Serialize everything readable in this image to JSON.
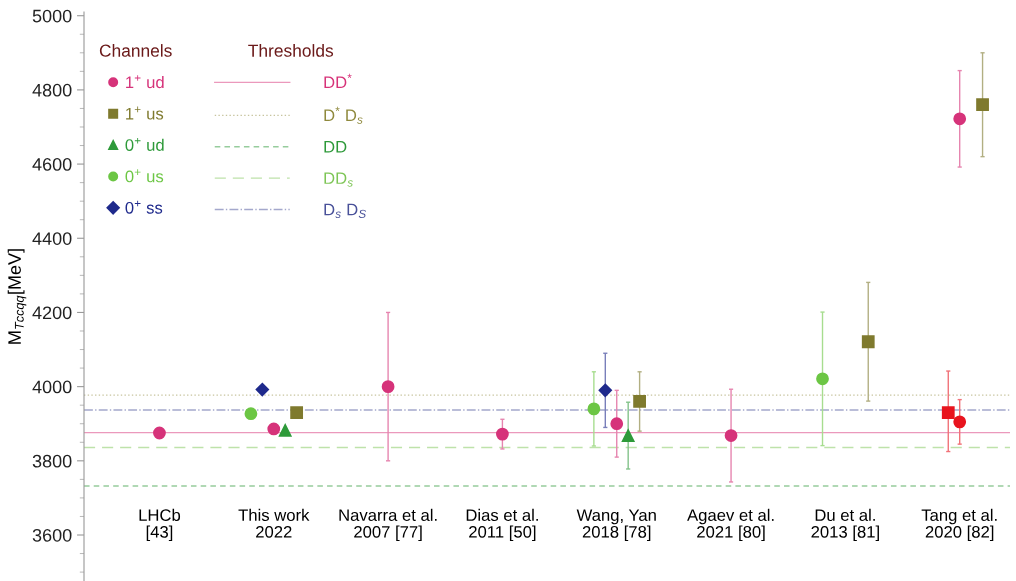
{
  "chart_data": {
    "type": "scatter",
    "ylabel": "M$_{Tccqq}$[MeV]",
    "categories": [
      "LHCb\n[43]",
      "This work\n2022",
      "Navarra et al.\n2007 [77]",
      "Dias et al.\n2011 [50]",
      "Wang, Yan\n2018 [78]",
      "Agaev et al.\n2021 [80]",
      "Du et al.\n2013 [81]",
      "Tang et al.\n2020 [82]"
    ],
    "ylim": [
      3476,
      5010
    ],
    "yticks": [
      3600,
      3800,
      4000,
      4200,
      4400,
      4600,
      4800,
      5000
    ],
    "legend": "top left",
    "legend_title": "Channels",
    "annotations": [
      "Thresholds"
    ],
    "series": [
      {
        "name": "1$^{+}$ ud",
        "color": "#d6337a",
        "marker": "circle",
        "values": [
          3875,
          3886,
          4000,
          3872,
          3900,
          3868,
          null,
          4722
        ],
        "errors": [
          null,
          null,
          200,
          40,
          90,
          125,
          null,
          130
        ]
      },
      {
        "name": "1$^{+}$ us",
        "color": "#7f7a2e",
        "marker": "square",
        "values": [
          null,
          3930,
          null,
          null,
          3960,
          null,
          4121,
          4760
        ],
        "errors": [
          null,
          null,
          null,
          null,
          80,
          null,
          160,
          140
        ]
      },
      {
        "name": "0$^{+}$ ud",
        "color": "#2e9a3a",
        "marker": "triangle",
        "values": [
          null,
          3882,
          null,
          null,
          3868,
          null,
          null,
          null
        ],
        "errors": [
          null,
          null,
          null,
          null,
          90,
          null,
          null,
          null
        ]
      },
      {
        "name": "0$^{+}$ us",
        "color": "#6cc644",
        "marker": "circle",
        "values": [
          null,
          3927,
          null,
          null,
          3940,
          null,
          4021,
          null
        ],
        "errors": [
          null,
          null,
          null,
          null,
          100,
          null,
          180,
          null
        ]
      },
      {
        "name": "0$^{+}$ ss",
        "color": "#1f2a8c",
        "marker": "diamond",
        "values": [
          null,
          3992,
          null,
          null,
          3990,
          null,
          null,
          null
        ],
        "errors": [
          null,
          null,
          null,
          null,
          100,
          null,
          null,
          null
        ]
      },
      {
        "color": "#e8141e",
        "marker": "square",
        "values": [
          null,
          null,
          null,
          null,
          null,
          null,
          null,
          3930
        ],
        "errors": [
          null,
          null,
          null,
          null,
          null,
          null,
          null,
          [
            3825,
            4042
          ]
        ]
      },
      {
        "color": "#e8141e",
        "marker": "circle",
        "values": [
          null,
          null,
          null,
          null,
          null,
          null,
          null,
          3905
        ],
        "errors": [
          null,
          null,
          null,
          null,
          null,
          null,
          null,
          60
        ]
      }
    ],
    "ref_lines": [
      {
        "axis": "y",
        "value": 3876,
        "label": "DD$^{*}$",
        "color": "#eb99bc",
        "line_style": "solid"
      },
      {
        "axis": "y",
        "value": 3977,
        "label": "D$^{*}$ D$_{s}$",
        "color": "#c7c49e",
        "line_style": "dotted"
      },
      {
        "axis": "y",
        "value": 3732,
        "label": "DD",
        "color": "#96cc9c",
        "line_style": "dashed"
      },
      {
        "axis": "y",
        "value": 3836,
        "label": "DD$_{s}$",
        "color": "#bee2aa",
        "line_style": "longdash"
      },
      {
        "axis": "y",
        "value": 3937,
        "label": "D$_{s}$ D$_{S}$",
        "color": "#a4a8cc",
        "line_style": "dashdot"
      }
    ]
  }
}
